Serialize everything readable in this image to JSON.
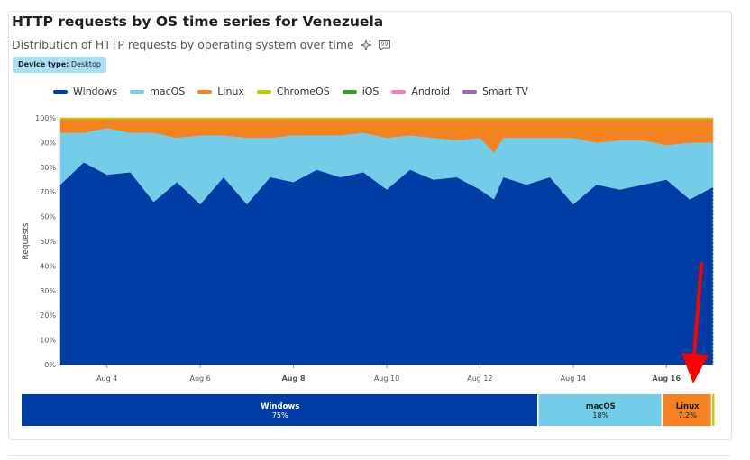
{
  "header": {
    "title": "HTTP requests by OS time series for Venezuela",
    "subtitle": "Distribution of HTTP requests by operating system over time"
  },
  "badge": {
    "label": "Device type:",
    "value": "Desktop"
  },
  "icons": [
    "sparkle-icon",
    "quote-icon"
  ],
  "chart_data": {
    "type": "area",
    "stacked": true,
    "ylabel": "Requests",
    "ylim": [
      0,
      100
    ],
    "yticks": [
      "0%",
      "10%",
      "20%",
      "30%",
      "40%",
      "50%",
      "60%",
      "70%",
      "80%",
      "90%",
      "100%"
    ],
    "xticks": [
      {
        "label": "Aug 4",
        "bold": false,
        "x": 4
      },
      {
        "label": "Aug 6",
        "bold": false,
        "x": 6
      },
      {
        "label": "Aug 8",
        "bold": true,
        "x": 8
      },
      {
        "label": "Aug 10",
        "bold": false,
        "x": 10
      },
      {
        "label": "Aug 12",
        "bold": false,
        "x": 12
      },
      {
        "label": "Aug 14",
        "bold": false,
        "x": 14
      },
      {
        "label": "Aug 16",
        "bold": true,
        "x": 16
      }
    ],
    "x_range": [
      3.0,
      17.0
    ],
    "x": [
      3.0,
      3.5,
      4.0,
      4.5,
      5.0,
      5.5,
      6.0,
      6.5,
      7.0,
      7.5,
      8.0,
      8.5,
      9.0,
      9.5,
      10.0,
      10.5,
      11.0,
      11.5,
      12.0,
      12.3,
      12.5,
      13.0,
      13.5,
      14.0,
      14.5,
      15.0,
      15.5,
      16.0,
      16.5,
      17.0
    ],
    "legend_position": "top",
    "series": [
      {
        "name": "Windows",
        "color": "#003da5",
        "values": [
          73,
          82,
          77,
          78,
          66,
          74,
          65,
          76,
          65,
          76,
          74,
          79,
          76,
          78,
          71,
          79,
          75,
          76,
          71,
          67,
          76,
          73,
          76,
          65,
          73,
          71,
          73,
          75,
          67,
          72
        ]
      },
      {
        "name": "macOS",
        "color": "#73cde8",
        "values": [
          21,
          12,
          19,
          16,
          28,
          18,
          28,
          17,
          27,
          16,
          19,
          14,
          17,
          16,
          21,
          14,
          17,
          15,
          21,
          19,
          16,
          19,
          16,
          27,
          17,
          20,
          18,
          14,
          23,
          18
        ]
      },
      {
        "name": "Linux",
        "color": "#f58220",
        "values": [
          5.5,
          5.5,
          3.5,
          5.5,
          5.5,
          7.5,
          6.5,
          6.5,
          7.5,
          7.5,
          6.5,
          6.5,
          6.5,
          5.5,
          7.5,
          6.5,
          7.5,
          8.5,
          7.5,
          13.5,
          7.5,
          7.5,
          7.5,
          7.5,
          9.5,
          8.5,
          8.5,
          10.5,
          9.5,
          9.5
        ]
      },
      {
        "name": "ChromeOS",
        "color": "#bfc800",
        "values": [
          0.5,
          0.5,
          0.5,
          0.5,
          0.5,
          0.5,
          0.5,
          0.5,
          0.5,
          0.5,
          0.5,
          0.5,
          0.5,
          0.5,
          0.5,
          0.5,
          0.5,
          0.5,
          0.5,
          0.5,
          0.5,
          0.5,
          0.5,
          0.5,
          0.5,
          0.5,
          0.5,
          0.5,
          0.5,
          0.5
        ]
      },
      {
        "name": "iOS",
        "color": "#2ca02c",
        "values": null
      },
      {
        "name": "Android",
        "color": "#f27dc0",
        "values": null
      },
      {
        "name": "Smart TV",
        "color": "#9467bd",
        "values": null
      }
    ],
    "summary_bar": [
      {
        "name": "Windows",
        "label": "Windows",
        "pct": "75%",
        "value": 75,
        "color": "#003da5",
        "text_color": "#ffffff"
      },
      {
        "name": "macOS",
        "label": "macOS",
        "pct": "18%",
        "value": 18,
        "color": "#73cde8",
        "text_color": "#1a1a1a"
      },
      {
        "name": "Linux",
        "label": "Linux",
        "pct": "7.2%",
        "value": 7.2,
        "color": "#f58220",
        "text_color": "#1a1a1a"
      },
      {
        "name": "ChromeOS",
        "label": "",
        "pct": "",
        "value": 0.5,
        "color": "#bfc800",
        "text_color": "#1a1a1a"
      }
    ]
  },
  "annotation": {
    "type": "arrow",
    "color": "#ff0000",
    "points_to": "Linux"
  }
}
